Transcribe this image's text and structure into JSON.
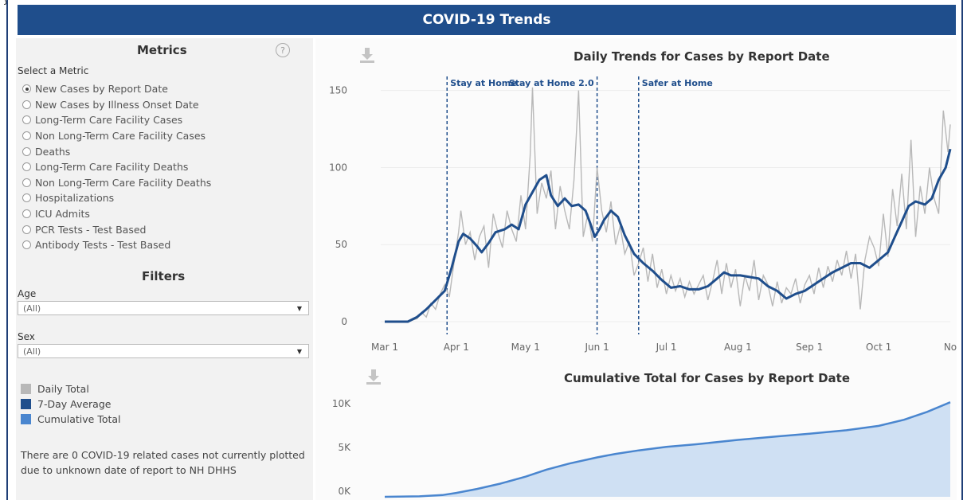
{
  "header": {
    "partial_text": "y",
    "title": "COVID-19 Trends"
  },
  "metrics": {
    "title": "Metrics",
    "help_glyph": "?",
    "select_label": "Select a Metric",
    "selected_index": 0,
    "options": [
      "New Cases by Report Date",
      "New Cases by Illness Onset Date",
      "Long-Term Care Facility Cases",
      "Non Long-Term Care Facility Cases",
      "Deaths",
      "Long-Term Care Facility Deaths",
      "Non Long-Term Care Facility Deaths",
      "Hospitalizations",
      "ICU Admits",
      "PCR Tests - Test Based",
      "Antibody Tests - Test Based"
    ]
  },
  "filters": {
    "title": "Filters",
    "age_label": "Age",
    "age_value": "(All)",
    "sex_label": "Sex",
    "sex_value": "(All)"
  },
  "legend": [
    {
      "label": "Daily Total",
      "color": "#b8b8b8"
    },
    {
      "label": "7-Day Average",
      "color": "#1f4e8c"
    },
    {
      "label": "Cumulative Total",
      "color": "#4a86cf"
    }
  ],
  "note": "There are 0 COVID-19 related cases not currently plotted due to unknown date of report to NH DHHS",
  "colors": {
    "banner": "#1f4e8c",
    "daily": "#b8b8b8",
    "avg": "#1f4e8c",
    "cum_line": "#4a86cf",
    "cum_fill": "#cfe0f3"
  },
  "chart_data": [
    {
      "type": "line",
      "title": "Daily Trends for Cases by Report Date",
      "x_tick_labels": [
        "Mar 1",
        "Apr 1",
        "May 1",
        "Jun 1",
        "Jul 1",
        "Aug 1",
        "Sep 1",
        "Oct 1",
        "No"
      ],
      "x_tick_days": [
        0,
        31,
        61,
        92,
        122,
        153,
        184,
        214,
        245
      ],
      "ylim": [
        0,
        155
      ],
      "y_ticks": [
        0,
        50,
        100,
        150
      ],
      "annotations": [
        {
          "label": "Stay at Home",
          "day": 27
        },
        {
          "label": "Stay at Home 2.0",
          "day": 92
        },
        {
          "label": "Safer at Home",
          "day": 110
        }
      ],
      "series": [
        {
          "name": "7-Day Average",
          "points": [
            [
              0,
              0
            ],
            [
              10,
              0
            ],
            [
              14,
              3
            ],
            [
              18,
              8
            ],
            [
              22,
              14
            ],
            [
              26,
              20
            ],
            [
              29,
              35
            ],
            [
              32,
              52
            ],
            [
              34,
              57
            ],
            [
              37,
              54
            ],
            [
              40,
              49
            ],
            [
              42,
              45
            ],
            [
              45,
              51
            ],
            [
              48,
              58
            ],
            [
              52,
              60
            ],
            [
              55,
              63
            ],
            [
              58,
              60
            ],
            [
              61,
              76
            ],
            [
              64,
              84
            ],
            [
              67,
              92
            ],
            [
              70,
              95
            ],
            [
              72,
              82
            ],
            [
              75,
              75
            ],
            [
              78,
              80
            ],
            [
              81,
              75
            ],
            [
              84,
              76
            ],
            [
              87,
              72
            ],
            [
              89,
              64
            ],
            [
              91,
              55
            ],
            [
              93,
              60
            ],
            [
              95,
              66
            ],
            [
              98,
              72
            ],
            [
              101,
              68
            ],
            [
              104,
              56
            ],
            [
              108,
              44
            ],
            [
              112,
              38
            ],
            [
              116,
              33
            ],
            [
              120,
              27
            ],
            [
              124,
              22
            ],
            [
              128,
              23
            ],
            [
              132,
              21
            ],
            [
              136,
              21
            ],
            [
              140,
              23
            ],
            [
              144,
              28
            ],
            [
              147,
              32
            ],
            [
              150,
              30
            ],
            [
              154,
              30
            ],
            [
              158,
              29
            ],
            [
              162,
              28
            ],
            [
              166,
              23
            ],
            [
              170,
              20
            ],
            [
              174,
              15
            ],
            [
              178,
              18
            ],
            [
              182,
              20
            ],
            [
              186,
              24
            ],
            [
              190,
              28
            ],
            [
              194,
              32
            ],
            [
              198,
              35
            ],
            [
              202,
              38
            ],
            [
              206,
              38
            ],
            [
              210,
              35
            ],
            [
              214,
              40
            ],
            [
              218,
              45
            ],
            [
              221,
              55
            ],
            [
              224,
              65
            ],
            [
              227,
              75
            ],
            [
              230,
              78
            ],
            [
              234,
              76
            ],
            [
              237,
              80
            ],
            [
              240,
              92
            ],
            [
              243,
              100
            ],
            [
              245,
              112
            ]
          ]
        },
        {
          "name": "Daily Total",
          "points": [
            [
              0,
              0
            ],
            [
              10,
              0
            ],
            [
              14,
              2
            ],
            [
              16,
              6
            ],
            [
              18,
              3
            ],
            [
              20,
              12
            ],
            [
              22,
              8
            ],
            [
              24,
              18
            ],
            [
              26,
              24
            ],
            [
              28,
              16
            ],
            [
              30,
              38
            ],
            [
              32,
              58
            ],
            [
              33,
              72
            ],
            [
              35,
              50
            ],
            [
              37,
              58
            ],
            [
              39,
              40
            ],
            [
              41,
              55
            ],
            [
              43,
              62
            ],
            [
              45,
              35
            ],
            [
              47,
              70
            ],
            [
              49,
              58
            ],
            [
              51,
              48
            ],
            [
              53,
              72
            ],
            [
              55,
              60
            ],
            [
              57,
              52
            ],
            [
              59,
              82
            ],
            [
              61,
              60
            ],
            [
              63,
              108
            ],
            [
              64,
              152
            ],
            [
              66,
              70
            ],
            [
              68,
              90
            ],
            [
              70,
              80
            ],
            [
              72,
              98
            ],
            [
              74,
              60
            ],
            [
              76,
              88
            ],
            [
              78,
              72
            ],
            [
              80,
              60
            ],
            [
              82,
              92
            ],
            [
              84,
              150
            ],
            [
              86,
              55
            ],
            [
              88,
              70
            ],
            [
              90,
              52
            ],
            [
              92,
              100
            ],
            [
              94,
              72
            ],
            [
              96,
              58
            ],
            [
              98,
              78
            ],
            [
              100,
              50
            ],
            [
              102,
              62
            ],
            [
              104,
              44
            ],
            [
              106,
              52
            ],
            [
              108,
              30
            ],
            [
              110,
              38
            ],
            [
              112,
              48
            ],
            [
              114,
              26
            ],
            [
              116,
              44
            ],
            [
              118,
              22
            ],
            [
              120,
              34
            ],
            [
              122,
              18
            ],
            [
              124,
              30
            ],
            [
              126,
              20
            ],
            [
              128,
              28
            ],
            [
              130,
              16
            ],
            [
              132,
              26
            ],
            [
              134,
              18
            ],
            [
              136,
              24
            ],
            [
              138,
              30
            ],
            [
              140,
              14
            ],
            [
              142,
              26
            ],
            [
              144,
              40
            ],
            [
              146,
              18
            ],
            [
              148,
              38
            ],
            [
              150,
              22
            ],
            [
              152,
              34
            ],
            [
              154,
              10
            ],
            [
              156,
              30
            ],
            [
              158,
              20
            ],
            [
              160,
              40
            ],
            [
              162,
              14
            ],
            [
              164,
              30
            ],
            [
              166,
              24
            ],
            [
              168,
              10
            ],
            [
              170,
              26
            ],
            [
              172,
              12
            ],
            [
              174,
              22
            ],
            [
              176,
              18
            ],
            [
              178,
              28
            ],
            [
              180,
              12
            ],
            [
              182,
              24
            ],
            [
              184,
              30
            ],
            [
              186,
              18
            ],
            [
              188,
              35
            ],
            [
              190,
              22
            ],
            [
              192,
              36
            ],
            [
              194,
              26
            ],
            [
              196,
              40
            ],
            [
              198,
              30
            ],
            [
              200,
              46
            ],
            [
              202,
              28
            ],
            [
              204,
              44
            ],
            [
              206,
              8
            ],
            [
              208,
              40
            ],
            [
              210,
              55
            ],
            [
              212,
              48
            ],
            [
              214,
              36
            ],
            [
              216,
              70
            ],
            [
              218,
              42
            ],
            [
              220,
              86
            ],
            [
              222,
              62
            ],
            [
              224,
              96
            ],
            [
              226,
              60
            ],
            [
              228,
              118
            ],
            [
              230,
              55
            ],
            [
              232,
              88
            ],
            [
              234,
              70
            ],
            [
              236,
              100
            ],
            [
              238,
              80
            ],
            [
              240,
              70
            ],
            [
              242,
              137
            ],
            [
              244,
              110
            ],
            [
              245,
              128
            ]
          ]
        }
      ]
    },
    {
      "type": "area",
      "title": "Cumulative Total for Cases by Report Date",
      "ylim": [
        0,
        12000
      ],
      "y_tick_labels": [
        "0K",
        "5K",
        "10K"
      ],
      "y_ticks": [
        0,
        5000,
        10000
      ],
      "series": [
        {
          "name": "Cumulative Total",
          "points": [
            [
              0,
              0
            ],
            [
              15,
              50
            ],
            [
              25,
              200
            ],
            [
              31,
              450
            ],
            [
              40,
              900
            ],
            [
              50,
              1500
            ],
            [
              61,
              2300
            ],
            [
              70,
              3100
            ],
            [
              80,
              3800
            ],
            [
              92,
              4500
            ],
            [
              100,
              4900
            ],
            [
              110,
              5300
            ],
            [
              122,
              5700
            ],
            [
              135,
              6000
            ],
            [
              153,
              6500
            ],
            [
              170,
              6900
            ],
            [
              184,
              7200
            ],
            [
              200,
              7600
            ],
            [
              214,
              8100
            ],
            [
              225,
              8800
            ],
            [
              235,
              9700
            ],
            [
              245,
              10800
            ]
          ]
        }
      ]
    }
  ]
}
